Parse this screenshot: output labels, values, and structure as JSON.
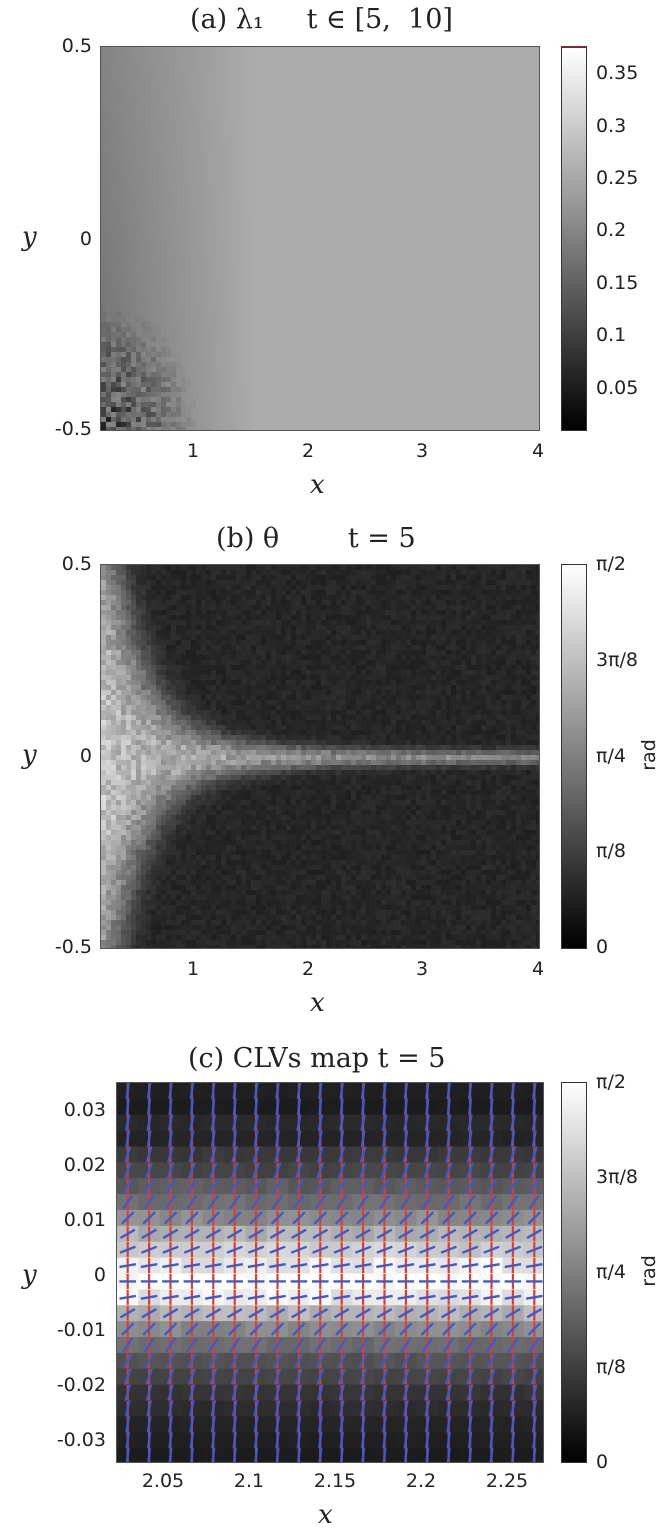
{
  "chart_data": [
    {
      "type": "heatmap",
      "title": "(a) λ₁     t ∈ [5,  10]",
      "xlabel": "x",
      "ylabel": "y",
      "xlim": [
        0.2,
        4
      ],
      "ylim": [
        -0.5,
        0.5
      ],
      "x_ticks": [
        "1",
        "2",
        "3",
        "4"
      ],
      "y_ticks": [
        "0.5",
        "0",
        "-0.5"
      ],
      "colorbar": {
        "range": [
          0.01,
          0.38
        ],
        "ticks": [
          "0.35",
          "0.3",
          "0.25",
          "0.2",
          "0.15",
          "0.1",
          "0.05"
        ],
        "unit": "",
        "colormap": "gray"
      },
      "description_values": {
        "plateau_value": 0.26,
        "low_corner_value": 0.03
      }
    },
    {
      "type": "heatmap",
      "title": "(b) θ        t = 5",
      "xlabel": "x",
      "ylabel": "y",
      "xlim": [
        0.2,
        4
      ],
      "ylim": [
        -0.5,
        0.5
      ],
      "x_ticks": [
        "1",
        "2",
        "3",
        "4"
      ],
      "y_ticks": [
        "0.5",
        "0",
        "-0.5"
      ],
      "colorbar": {
        "range": [
          0,
          1.5708
        ],
        "ticks": [
          "π/2",
          "3π/8",
          "π/4",
          "π/8",
          "0"
        ],
        "unit": "rad",
        "colormap": "gray"
      }
    },
    {
      "type": "heatmap",
      "title": "(c) CLVs map t = 5",
      "xlabel": "x",
      "ylabel": "y",
      "xlim": [
        2.025,
        2.275
      ],
      "ylim": [
        -0.033,
        0.035
      ],
      "x_ticks": [
        "2.05",
        "2.1",
        "2.15",
        "2.2",
        "2.25"
      ],
      "y_ticks": [
        "0.03",
        "0.02",
        "0.01",
        "0",
        "-0.01",
        "-0.02",
        "-0.03"
      ],
      "row_angles_rad": [
        0.12,
        0.1,
        0.18,
        0.15,
        0.28,
        0.35,
        0.5,
        0.62,
        0.8,
        1.05,
        1.2,
        1.4,
        1.57,
        1.4,
        1.05,
        0.78,
        0.6,
        0.45,
        0.35,
        0.25,
        0.2,
        0.15,
        0.12,
        0.1
      ],
      "vector_colors": {
        "clv1": "#e03c28",
        "clv2": "#3c5ad2"
      },
      "colorbar": {
        "range": [
          0,
          1.5708
        ],
        "ticks": [
          "π/2",
          "3π/8",
          "π/4",
          "π/8",
          "0"
        ],
        "unit": "rad",
        "colormap": "gray"
      }
    }
  ]
}
